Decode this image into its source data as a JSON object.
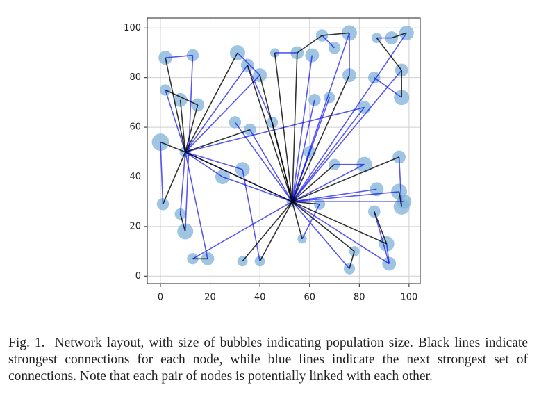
{
  "chart_data": {
    "type": "network",
    "x": [
      2,
      13,
      2,
      8,
      15,
      0,
      10,
      1,
      8,
      10,
      13,
      19,
      25,
      31,
      35,
      40,
      36,
      33,
      33,
      40,
      46,
      55,
      61,
      65,
      76,
      70,
      76,
      62,
      68,
      53,
      57,
      64,
      60,
      82,
      82,
      70,
      78,
      76,
      86,
      87,
      91,
      92,
      96,
      97,
      96,
      98,
      97,
      97,
      99,
      93,
      87,
      86,
      45,
      30
    ],
    "y": [
      88,
      89,
      75,
      71,
      69,
      54,
      50,
      29,
      25,
      18,
      7,
      7,
      40,
      90,
      85,
      81,
      59,
      43,
      6,
      6,
      90,
      90,
      89,
      97,
      98,
      92,
      81,
      71,
      72,
      30,
      15,
      29,
      50,
      68,
      45,
      45,
      10,
      3,
      26,
      35,
      13,
      5,
      34,
      28,
      48,
      30,
      72,
      83,
      98,
      96,
      96,
      80,
      62,
      62
    ],
    "sizes": [
      90,
      70,
      60,
      90,
      80,
      140,
      60,
      70,
      60,
      120,
      60,
      80,
      100,
      110,
      80,
      90,
      70,
      100,
      50,
      50,
      40,
      80,
      90,
      70,
      110,
      70,
      90,
      70,
      60,
      60,
      40,
      60,
      70,
      80,
      110,
      60,
      50,
      60,
      70,
      90,
      110,
      90,
      120,
      120,
      80,
      100,
      110,
      80,
      100,
      80,
      50,
      70,
      60,
      70
    ],
    "bubble_color": "#7fb2da",
    "black_edges": [
      [
        0,
        6
      ],
      [
        3,
        6
      ],
      [
        4,
        6
      ],
      [
        5,
        6
      ],
      [
        7,
        6
      ],
      [
        6,
        13
      ],
      [
        6,
        16
      ],
      [
        6,
        29
      ],
      [
        29,
        14
      ],
      [
        29,
        20
      ],
      [
        29,
        21
      ],
      [
        29,
        26
      ],
      [
        29,
        18
      ],
      [
        29,
        19
      ],
      [
        29,
        30
      ],
      [
        29,
        31
      ],
      [
        29,
        36
      ],
      [
        29,
        40
      ],
      [
        29,
        44
      ],
      [
        29,
        35
      ],
      [
        21,
        23
      ],
      [
        23,
        24
      ],
      [
        36,
        37
      ],
      [
        40,
        38
      ],
      [
        42,
        43
      ],
      [
        47,
        46
      ],
      [
        49,
        48
      ],
      [
        50,
        47
      ],
      [
        10,
        11
      ],
      [
        2,
        4
      ],
      [
        52,
        29
      ],
      [
        15,
        29
      ],
      [
        8,
        9
      ]
    ],
    "black_color": "#000000",
    "blue_edges": [
      [
        0,
        1
      ],
      [
        1,
        9
      ],
      [
        2,
        6
      ],
      [
        6,
        14
      ],
      [
        6,
        15
      ],
      [
        6,
        12
      ],
      [
        6,
        11
      ],
      [
        6,
        17
      ],
      [
        6,
        33
      ],
      [
        6,
        29
      ],
      [
        29,
        22
      ],
      [
        29,
        24
      ],
      [
        29,
        27
      ],
      [
        29,
        28
      ],
      [
        29,
        33
      ],
      [
        29,
        34
      ],
      [
        29,
        39
      ],
      [
        29,
        41
      ],
      [
        29,
        42
      ],
      [
        29,
        45
      ],
      [
        29,
        47
      ],
      [
        29,
        48
      ],
      [
        29,
        37
      ],
      [
        29,
        12
      ],
      [
        29,
        53
      ],
      [
        29,
        10
      ],
      [
        29,
        16
      ],
      [
        13,
        15
      ],
      [
        20,
        21
      ],
      [
        25,
        23
      ],
      [
        26,
        24
      ],
      [
        51,
        46
      ],
      [
        49,
        50
      ],
      [
        40,
        41
      ],
      [
        44,
        43
      ],
      [
        38,
        41
      ],
      [
        7,
        5
      ],
      [
        8,
        6
      ],
      [
        32,
        29
      ],
      [
        17,
        19
      ],
      [
        30,
        31
      ],
      [
        35,
        34
      ],
      [
        14,
        52
      ]
    ],
    "blue_color": "#1010ee",
    "xlim": [
      -5.3,
      104.5
    ],
    "ylim": [
      -3,
      104
    ],
    "xticks": [
      0,
      20,
      40,
      60,
      80,
      100
    ],
    "yticks": [
      0,
      20,
      40,
      60,
      80,
      100
    ],
    "grid": true
  },
  "caption": {
    "label": "Fig. 1.",
    "text": "Network layout, with size of bubbles indicating population size. Black lines indicate strongest connections for each node, while blue lines indicate the next strongest set of connections. Note that each pair of nodes is potentially linked with each other."
  }
}
